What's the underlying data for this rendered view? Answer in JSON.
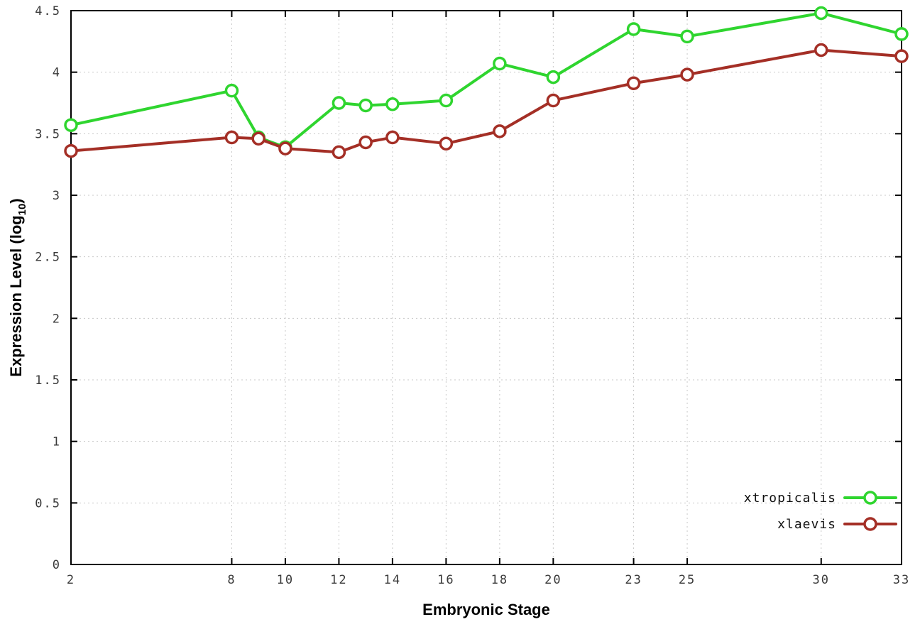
{
  "chart_data": {
    "type": "line",
    "title": "",
    "xlabel": "Embryonic Stage",
    "ylabel": "Expression Level (log10)",
    "ylabel_parts": {
      "prefix": "Expression Level (log",
      "subscript": "10",
      "suffix": ")"
    },
    "x": [
      2,
      8,
      9,
      10,
      12,
      13,
      14,
      16,
      18,
      20,
      23,
      25,
      30,
      33
    ],
    "xticks": [
      2,
      8,
      10,
      12,
      14,
      16,
      18,
      20,
      23,
      25,
      30,
      33
    ],
    "yticks": [
      0,
      0.5,
      1,
      1.5,
      2,
      2.5,
      3,
      3.5,
      4,
      4.5
    ],
    "ytick_labels": [
      "0",
      "0.5",
      "1",
      "1.5",
      "2",
      "2.5",
      "3",
      "3.5",
      "4",
      "4.5"
    ],
    "xlim": [
      2,
      33
    ],
    "ylim": [
      0,
      4.5
    ],
    "grid": true,
    "grid_style": "dotted",
    "legend_position": "bottom-right",
    "series": [
      {
        "name": "xtropicalis",
        "color": "#2fd52f",
        "values": [
          3.57,
          3.85,
          3.47,
          3.39,
          3.75,
          3.73,
          3.74,
          3.77,
          4.07,
          3.96,
          4.35,
          4.29,
          4.48,
          4.31
        ]
      },
      {
        "name": "xlaevis",
        "color": "#a42f26",
        "values": [
          3.36,
          3.47,
          3.46,
          3.38,
          3.35,
          3.43,
          3.47,
          3.42,
          3.52,
          3.77,
          3.91,
          3.98,
          4.18,
          4.13
        ]
      }
    ]
  },
  "style": {
    "background": "#ffffff",
    "border_color": "#000000",
    "grid_color": "#c8c8c8",
    "marker_fill": "#ffffff",
    "line_width": 4,
    "marker_radius": 8,
    "marker_stroke_width": 3.5
  }
}
